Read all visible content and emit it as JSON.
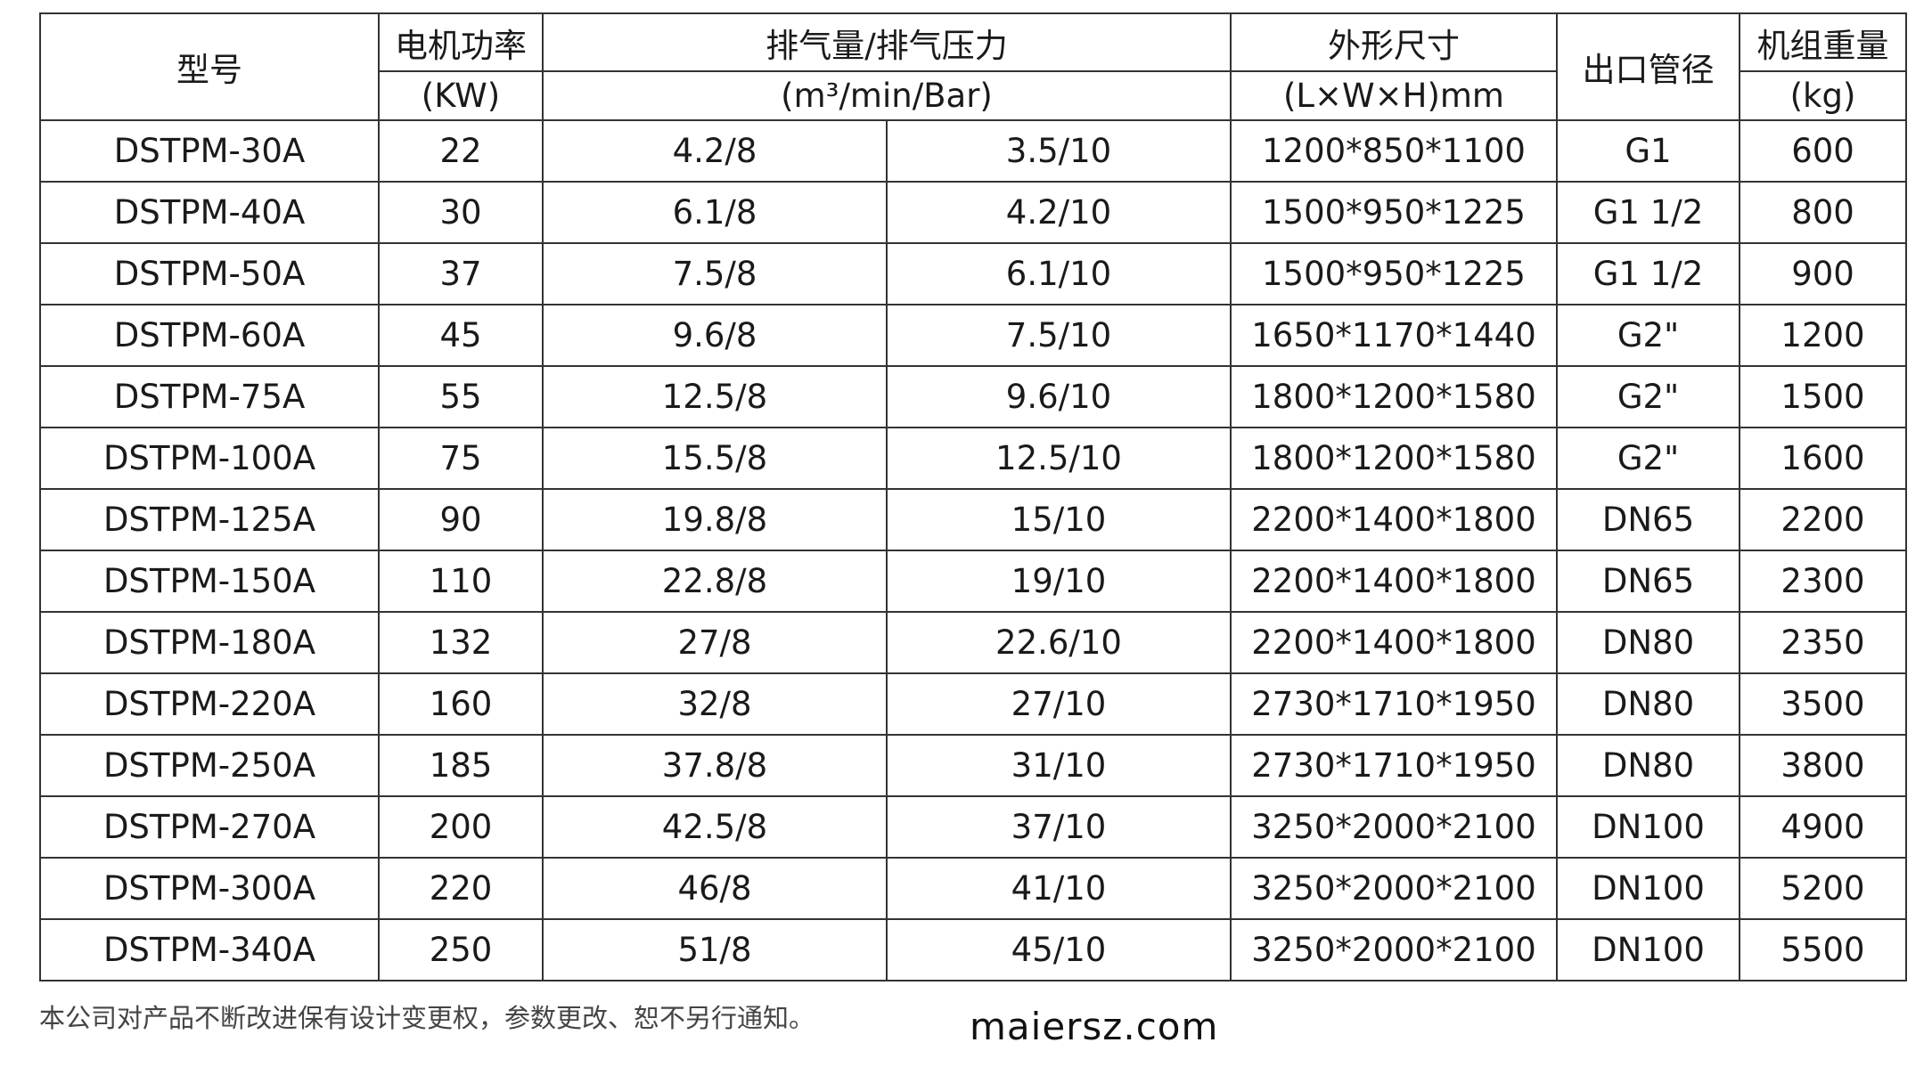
{
  "header": {
    "model": "型号",
    "power": "电机功率",
    "power_unit": "(KW)",
    "flow": "排气量/排气压力",
    "flow_unit": "(m³/min/Bar)",
    "size": "外形尺寸",
    "size_unit": "(L×W×H)mm",
    "outlet": "出口管径",
    "weight": "机组重量",
    "weight_unit": "(kg)"
  },
  "rows": [
    [
      "DSTPM-30A",
      "22",
      "4.2/8",
      "3.5/10",
      "1200*850*1100",
      "G1",
      "600"
    ],
    [
      "DSTPM-40A",
      "30",
      "6.1/8",
      "4.2/10",
      "1500*950*1225",
      "G1 1/2",
      "800"
    ],
    [
      "DSTPM-50A",
      "37",
      "7.5/8",
      "6.1/10",
      "1500*950*1225",
      "G1 1/2",
      "900"
    ],
    [
      "DSTPM-60A",
      "45",
      "9.6/8",
      "7.5/10",
      "1650*1170*1440",
      "G2\"",
      "1200"
    ],
    [
      "DSTPM-75A",
      "55",
      "12.5/8",
      "9.6/10",
      "1800*1200*1580",
      "G2\"",
      "1500"
    ],
    [
      "DSTPM-100A",
      "75",
      "15.5/8",
      "12.5/10",
      "1800*1200*1580",
      "G2\"",
      "1600"
    ],
    [
      "DSTPM-125A",
      "90",
      "19.8/8",
      "15/10",
      "2200*1400*1800",
      "DN65",
      "2200"
    ],
    [
      "DSTPM-150A",
      "110",
      "22.8/8",
      "19/10",
      "2200*1400*1800",
      "DN65",
      "2300"
    ],
    [
      "DSTPM-180A",
      "132",
      "27/8",
      "22.6/10",
      "2200*1400*1800",
      "DN80",
      "2350"
    ],
    [
      "DSTPM-220A",
      "160",
      "32/8",
      "27/10",
      "2730*1710*1950",
      "DN80",
      "3500"
    ],
    [
      "DSTPM-250A",
      "185",
      "37.8/8",
      "31/10",
      "2730*1710*1950",
      "DN80",
      "3800"
    ],
    [
      "DSTPM-270A",
      "200",
      "42.5/8",
      "37/10",
      "3250*2000*2100",
      "DN100",
      "4900"
    ],
    [
      "DSTPM-300A",
      "220",
      "46/8",
      "41/10",
      "3250*2000*2100",
      "DN100",
      "5200"
    ],
    [
      "DSTPM-340A",
      "250",
      "51/8",
      "45/10",
      "3250*2000*2100",
      "DN100",
      "5500"
    ]
  ],
  "note": "本公司对产品不断改进保有设计变更权，参数更改、恕不另行通知。",
  "watermark": "maiersz.com"
}
